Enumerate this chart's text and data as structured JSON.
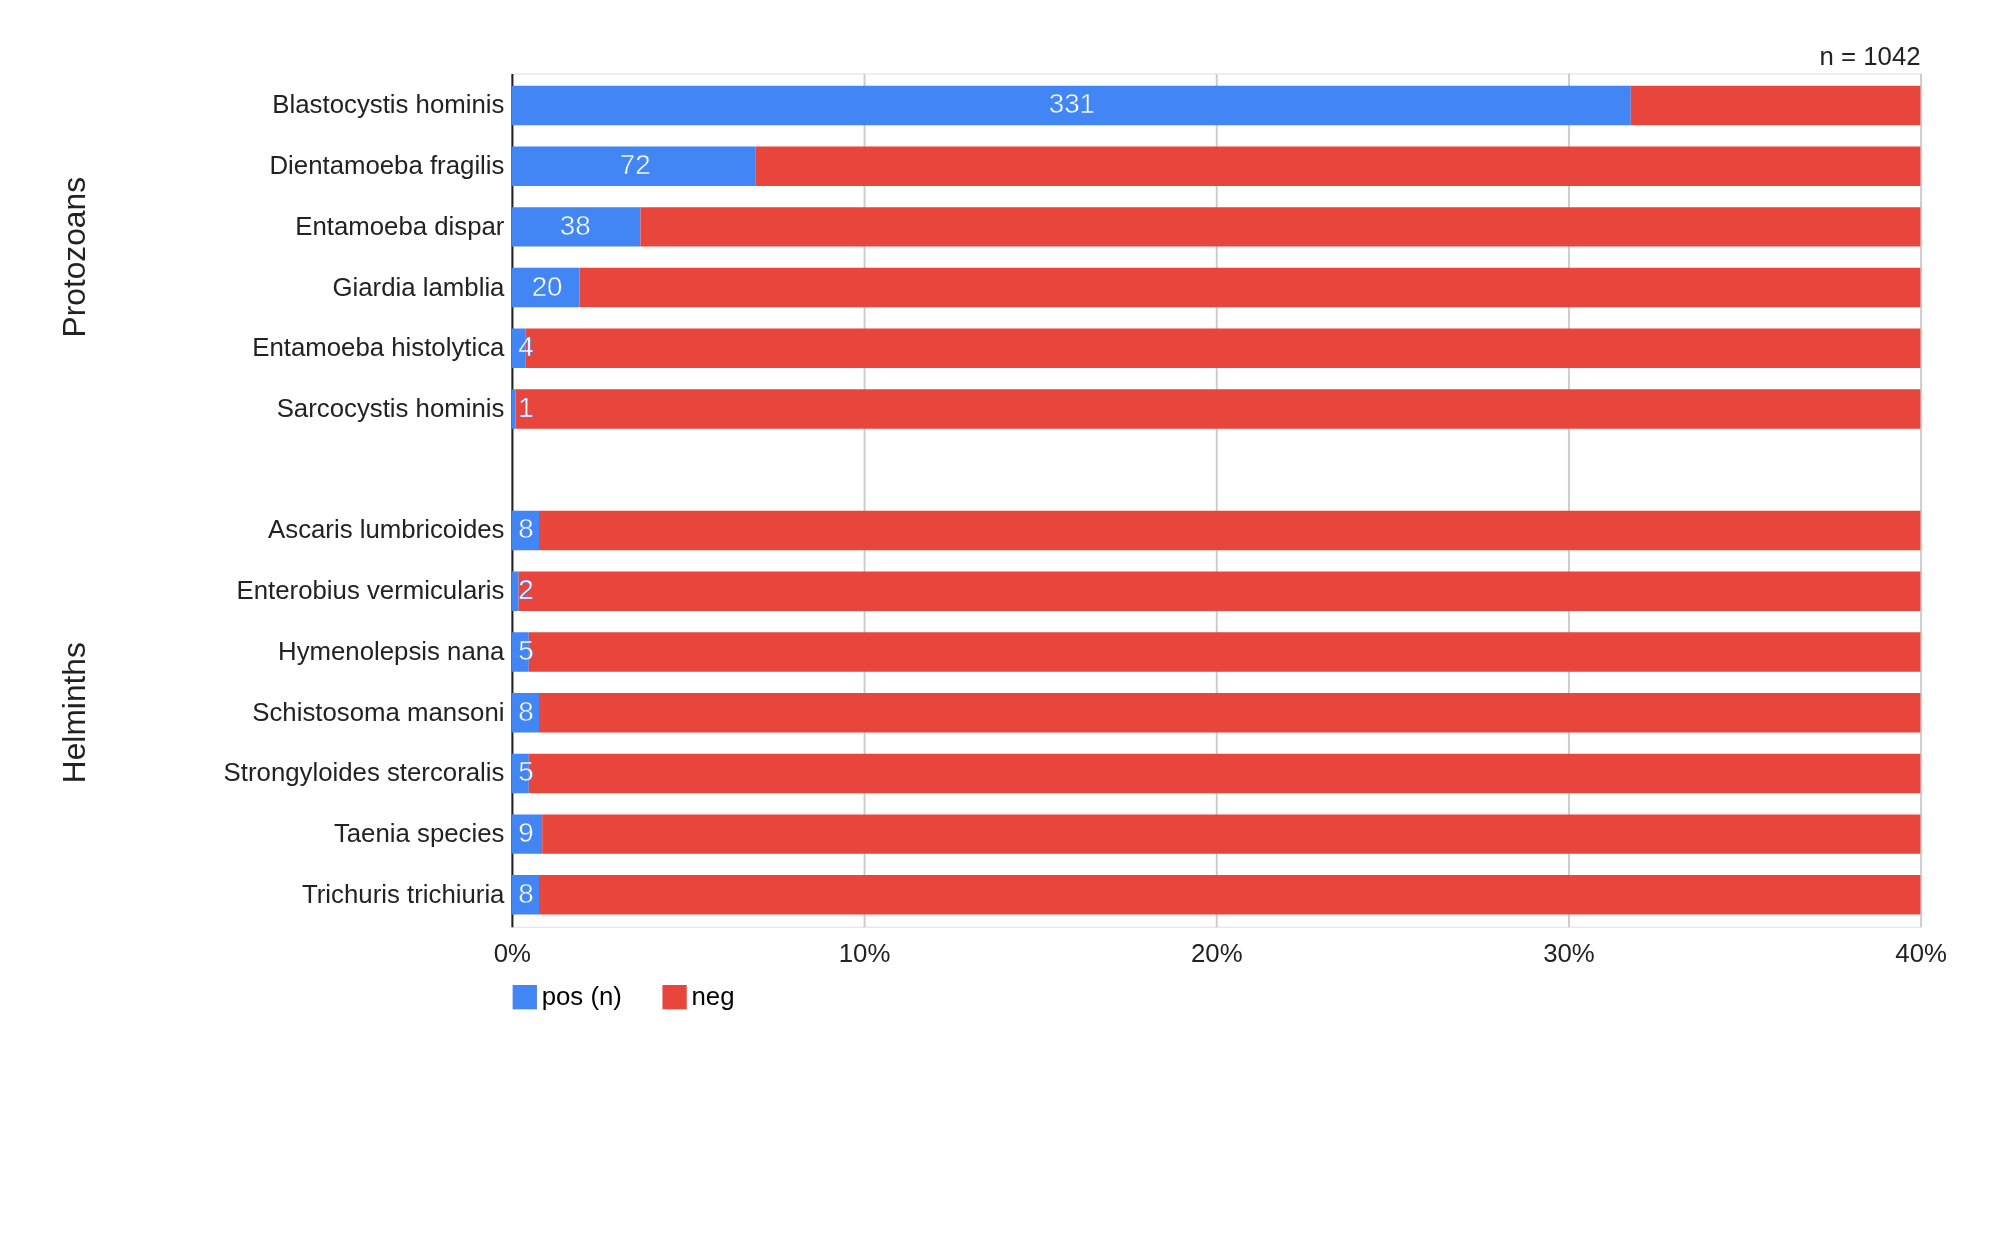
{
  "chart_data": {
    "type": "bar",
    "orientation": "horizontal",
    "stacked": true,
    "categories": [
      "Blastocystis hominis",
      "Dientamoeba fragilis",
      "Entamoeba dispar",
      "Giardia lamblia",
      "Entamoeba histolytica",
      "Sarcocystis hominis",
      null,
      "Ascaris lumbricoides",
      "Enterobius vermicularis",
      "Hymenolepsis nana",
      "Schistosoma mansoni",
      "Strongyloides stercoralis",
      "Taenia species",
      "Trichuris trichiuria"
    ],
    "series": [
      {
        "name": "pos (n)",
        "color": "#4285f4",
        "values": [
          31.77,
          6.91,
          3.65,
          1.92,
          0.38,
          0.1,
          null,
          0.77,
          0.19,
          0.48,
          0.77,
          0.48,
          0.86,
          0.77
        ]
      },
      {
        "name": "neg",
        "color": "#e8453c",
        "values": [
          8.23,
          33.09,
          36.35,
          38.08,
          39.62,
          39.9,
          null,
          39.23,
          39.81,
          39.52,
          39.23,
          39.52,
          39.14,
          39.23
        ]
      }
    ],
    "xlim": [
      0,
      40
    ],
    "xticks": [
      {
        "value": 0,
        "label": "0%"
      },
      {
        "value": 10,
        "label": "10%"
      },
      {
        "value": 20,
        "label": "20%"
      },
      {
        "value": 30,
        "label": "30%"
      },
      {
        "value": 40,
        "label": "40%"
      }
    ],
    "grid": "x",
    "legend": "bottom",
    "annotations": [
      "Protozoans",
      "Helminths",
      "n = 1042",
      {
        "text": "331",
        "x": 15.9,
        "y": "Blastocystis hominis"
      },
      {
        "text": "72",
        "x": 3.5,
        "y": "Dientamoeba fragilis"
      },
      {
        "text": "38",
        "x": 1.8,
        "y": "Entamoeba dispar"
      },
      {
        "text": "20",
        "x": 1.0,
        "y": "Giardia lamblia"
      },
      {
        "text": "4",
        "x": 0.4,
        "y": "Entamoeba histolytica"
      },
      {
        "text": "1",
        "x": 0.4,
        "y": "Sarcocystis hominis"
      },
      {
        "text": "8",
        "x": 0.4,
        "y": "Ascaris lumbricoides"
      },
      {
        "text": "2",
        "x": 0.4,
        "y": "Enterobius vermicularis"
      },
      {
        "text": "5",
        "x": 0.4,
        "y": "Hymenolepsis nana"
      },
      {
        "text": "8",
        "x": 0.4,
        "y": "Schistosoma mansoni"
      },
      {
        "text": "5",
        "x": 0.4,
        "y": "Strongyloides stercoralis"
      },
      {
        "text": "9",
        "x": 0.4,
        "y": "Taenia species"
      },
      {
        "text": "8",
        "x": 0.4,
        "y": "Trichuris trichiuria"
      }
    ]
  }
}
